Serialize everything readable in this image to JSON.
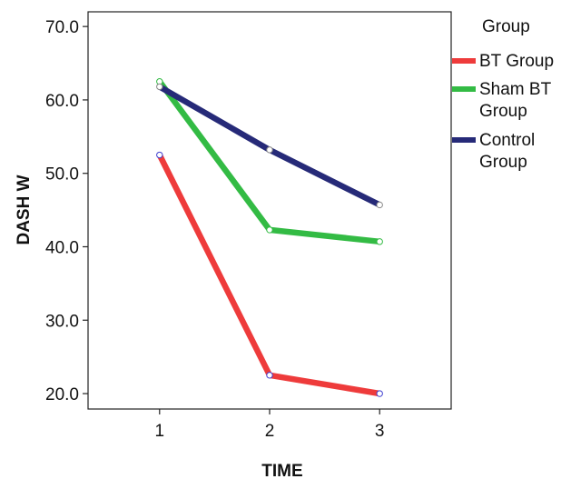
{
  "chart_data": {
    "type": "line",
    "xlabel": "TIME",
    "ylabel": "DASH W",
    "x": [
      1,
      2,
      3
    ],
    "x_tick_labels": [
      "1",
      "2",
      "3"
    ],
    "xlim": [
      0.35,
      3.65
    ],
    "ylim": [
      17.9,
      72.0
    ],
    "y_ticks": [
      20.0,
      30.0,
      40.0,
      50.0,
      60.0,
      70.0
    ],
    "y_tick_labels": [
      "20.0",
      "30.0",
      "40.0",
      "50.0",
      "60.0",
      "70.0"
    ],
    "grid": false,
    "legend_title": "Group",
    "legend_position": "right-outside",
    "series": [
      {
        "name": "BT Group",
        "color": "#ee3b3b",
        "marker_color": "#4040d0",
        "values": [
          52.5,
          22.5,
          20.0
        ],
        "legend_lines": [
          "BT Group"
        ]
      },
      {
        "name": "Sham BT Group",
        "color": "#33bb44",
        "marker_color": "#33bb44",
        "values": [
          62.5,
          42.3,
          40.7
        ],
        "legend_lines": [
          "Sham BT",
          "Group"
        ]
      },
      {
        "name": "Control Group",
        "color": "#262a78",
        "marker_color": "#888888",
        "values": [
          61.8,
          53.2,
          45.7
        ],
        "legend_lines": [
          "Control",
          "Group"
        ]
      }
    ]
  }
}
